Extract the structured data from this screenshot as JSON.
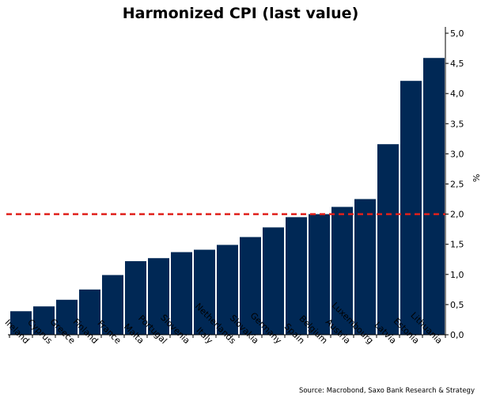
{
  "chart_data": {
    "type": "bar",
    "title": "Harmonized CPI (last value)",
    "source": "Source: Macrobond, Saxo Bank Research & Strategy",
    "ylabel": "%",
    "ylim": [
      0,
      5
    ],
    "yticks": [
      "0,0",
      "0,5",
      "1,0",
      "1,5",
      "2,0",
      "2,5",
      "3,0",
      "3,5",
      "4,0",
      "4,5",
      "5,0"
    ],
    "y_axis_side": "right",
    "grid": false,
    "categories": [
      "Ireland",
      "Cyprus",
      "Greece",
      "Finland",
      "France",
      "Malta",
      "Portugal",
      "Slovenia",
      "Italy",
      "Netherlands",
      "Slovakia",
      "Germany",
      "Spain",
      "Belgium",
      "Austria",
      "Luxembourg",
      "Latvia",
      "Estonia",
      "Lithuania"
    ],
    "values": [
      0.39,
      0.47,
      0.58,
      0.75,
      0.99,
      1.22,
      1.27,
      1.37,
      1.41,
      1.49,
      1.62,
      1.78,
      1.95,
      2.0,
      2.12,
      2.25,
      3.16,
      4.21,
      4.59
    ],
    "reference_line": 2.0,
    "colors": {
      "bar": "#002855",
      "reference_line": "#e0201b",
      "axis": "#000000"
    }
  }
}
